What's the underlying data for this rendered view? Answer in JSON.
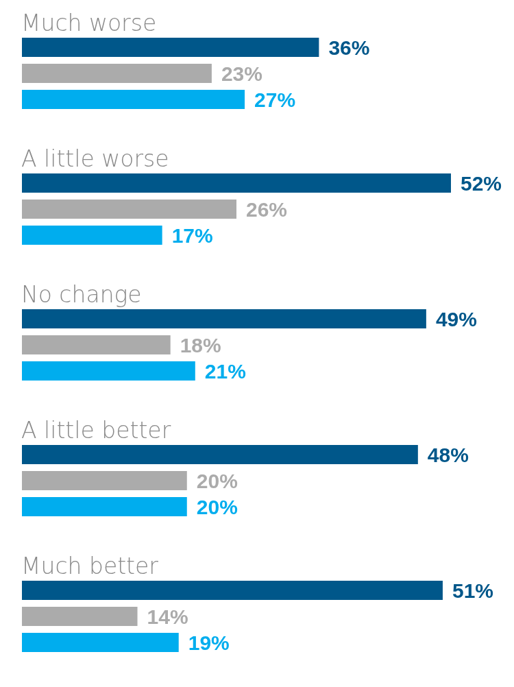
{
  "chart_data": {
    "type": "bar",
    "orientation": "horizontal",
    "categories": [
      "Much worse",
      "A little worse",
      "No change",
      "A little better",
      "Much better"
    ],
    "series": [
      {
        "color": "#00578a",
        "values": [
          36,
          52,
          49,
          48,
          51
        ],
        "value_labels": [
          "36%",
          "52%",
          "49%",
          "48%",
          "51%"
        ]
      },
      {
        "color": "#ababab",
        "values": [
          23,
          26,
          18,
          20,
          14
        ],
        "value_labels": [
          "23%",
          "26%",
          "18%",
          "20%",
          "14%"
        ]
      },
      {
        "color": "#00adee",
        "values": [
          27,
          17,
          21,
          20,
          19
        ],
        "value_labels": [
          "27%",
          "17%",
          "21%",
          "20%",
          "19%"
        ]
      }
    ],
    "grid": false,
    "legend": false
  }
}
